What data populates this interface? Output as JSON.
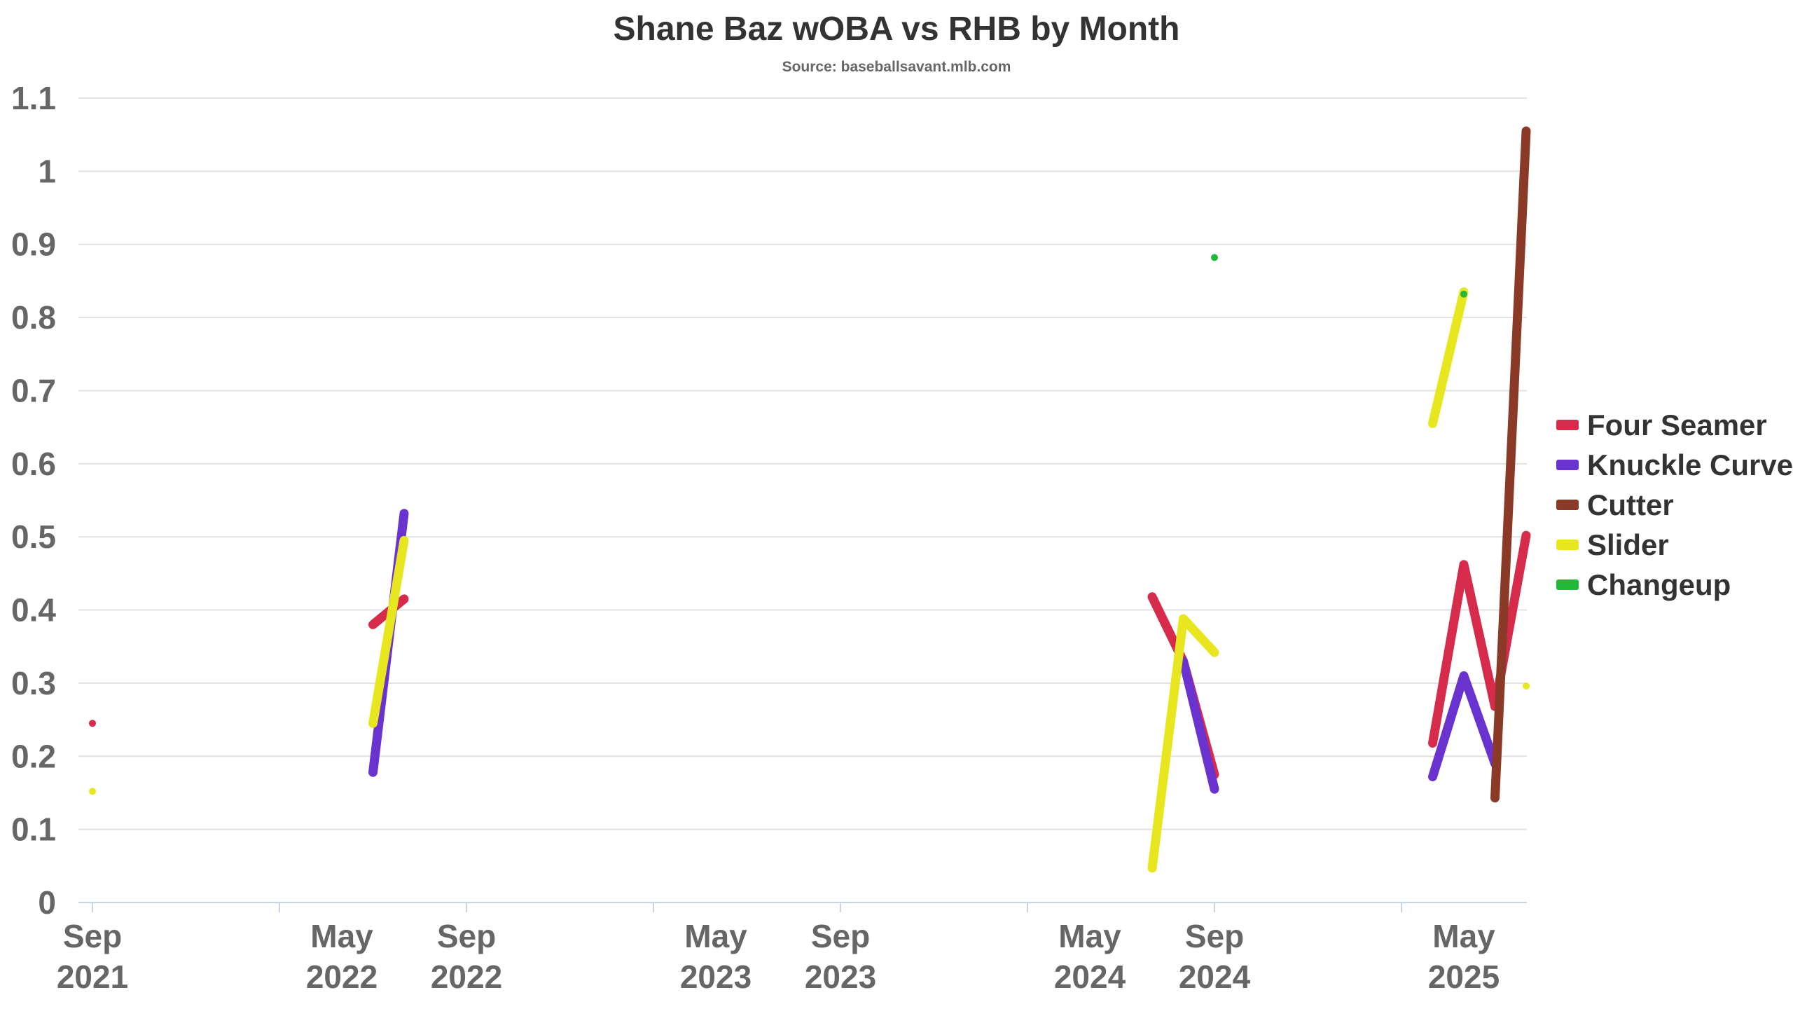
{
  "chart_data": {
    "type": "line",
    "title": "Shane Baz wOBA vs RHB by Month",
    "subtitle": "Source: baseballsavant.mlb.com",
    "xlabel": "",
    "ylabel": "",
    "ylim": [
      0,
      1.1
    ],
    "yticks": [
      "0",
      "0.1",
      "0.2",
      "0.3",
      "0.4",
      "0.5",
      "0.6",
      "0.7",
      "0.8",
      "0.9",
      "1",
      "1.1"
    ],
    "xlim": [
      "2021-09",
      "2025-07"
    ],
    "xticks": [
      {
        "date": "2021-09",
        "month": "Sep",
        "year": "2021"
      },
      {
        "date": "2022-05",
        "month": "May",
        "year": "2022"
      },
      {
        "date": "2022-09",
        "month": "Sep",
        "year": "2022"
      },
      {
        "date": "2023-05",
        "month": "May",
        "year": "2023"
      },
      {
        "date": "2023-09",
        "month": "Sep",
        "year": "2023"
      },
      {
        "date": "2024-05",
        "month": "May",
        "year": "2024"
      },
      {
        "date": "2024-09",
        "month": "Sep",
        "year": "2024"
      },
      {
        "date": "2025-05",
        "month": "May",
        "year": "2025"
      }
    ],
    "grid": true,
    "legend_position": "right",
    "series": [
      {
        "name": "Four Seamer",
        "color": "#d62b4a",
        "points": [
          {
            "x": "2021-09",
            "y": 0.245
          },
          {
            "x": "2022-06",
            "y": 0.38
          },
          {
            "x": "2022-07",
            "y": 0.415
          },
          {
            "x": "2024-07",
            "y": 0.418
          },
          {
            "x": "2024-08",
            "y": 0.33
          },
          {
            "x": "2024-09",
            "y": 0.175
          },
          {
            "x": "2025-04",
            "y": 0.218
          },
          {
            "x": "2025-05",
            "y": 0.462
          },
          {
            "x": "2025-06",
            "y": 0.268
          },
          {
            "x": "2025-07",
            "y": 0.502
          }
        ]
      },
      {
        "name": "Knuckle Curve",
        "color": "#6a33d0",
        "points": [
          {
            "x": "2022-06",
            "y": 0.178
          },
          {
            "x": "2022-07",
            "y": 0.532
          },
          {
            "x": "2024-08",
            "y": 0.33
          },
          {
            "x": "2024-09",
            "y": 0.155
          },
          {
            "x": "2025-04",
            "y": 0.172
          },
          {
            "x": "2025-05",
            "y": 0.31
          },
          {
            "x": "2025-06",
            "y": 0.19
          }
        ]
      },
      {
        "name": "Cutter",
        "color": "#8b3a28",
        "points": [
          {
            "x": "2025-06",
            "y": 0.143
          },
          {
            "x": "2025-07",
            "y": 1.055
          }
        ]
      },
      {
        "name": "Slider",
        "color": "#e8e61e",
        "points": [
          {
            "x": "2021-09",
            "y": 0.152
          },
          {
            "x": "2022-06",
            "y": 0.245
          },
          {
            "x": "2022-07",
            "y": 0.495
          },
          {
            "x": "2024-07",
            "y": 0.047
          },
          {
            "x": "2024-08",
            "y": 0.388
          },
          {
            "x": "2024-09",
            "y": 0.342
          },
          {
            "x": "2025-04",
            "y": 0.655
          },
          {
            "x": "2025-05",
            "y": 0.835
          },
          {
            "x": "2025-07",
            "y": 0.296
          }
        ]
      },
      {
        "name": "Changeup",
        "color": "#22b83a",
        "points": [
          {
            "x": "2024-09",
            "y": 0.882
          },
          {
            "x": "2025-05",
            "y": 0.832
          }
        ]
      }
    ]
  }
}
